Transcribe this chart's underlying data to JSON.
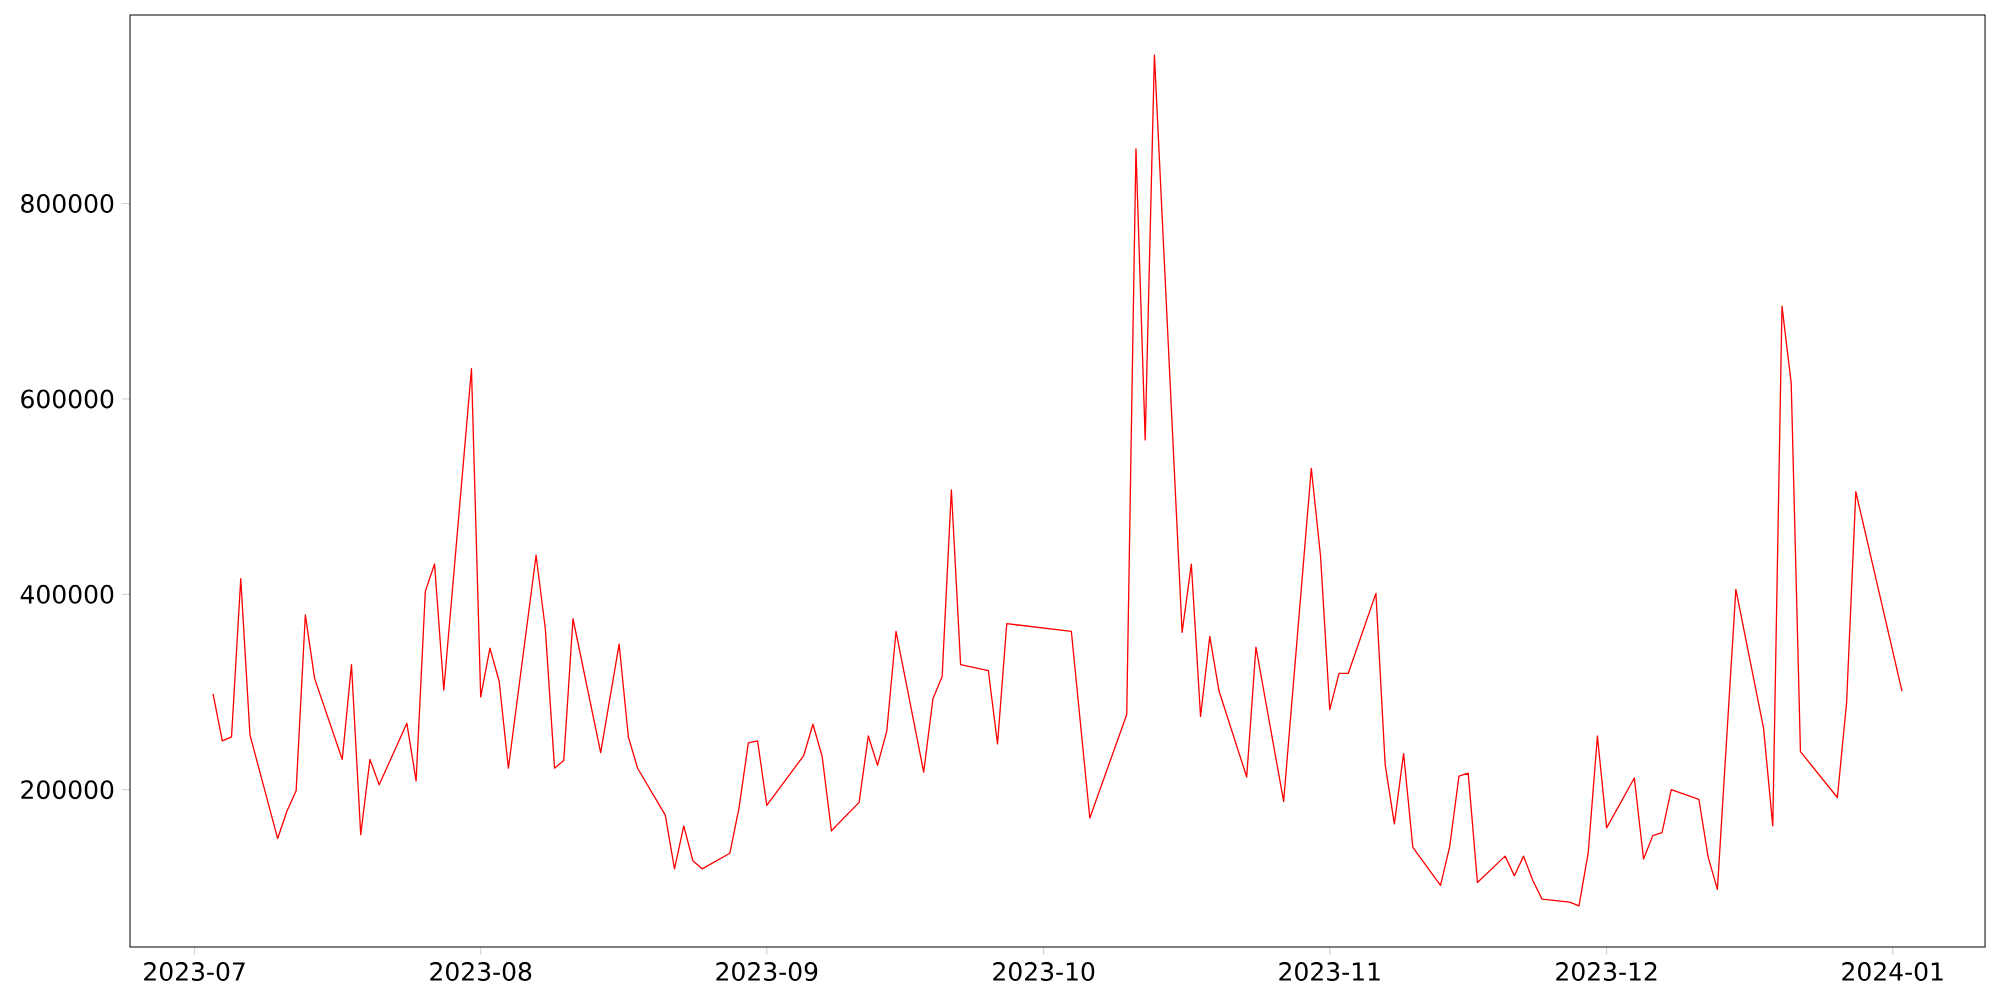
{
  "chart_data": {
    "type": "line",
    "color": "#ff0000",
    "x": [
      "2023-07-03",
      "2023-07-04",
      "2023-07-05",
      "2023-07-06",
      "2023-07-07",
      "2023-07-10",
      "2023-07-11",
      "2023-07-12",
      "2023-07-13",
      "2023-07-14",
      "2023-07-17",
      "2023-07-18",
      "2023-07-19",
      "2023-07-20",
      "2023-07-21",
      "2023-07-24",
      "2023-07-25",
      "2023-07-26",
      "2023-07-27",
      "2023-07-28",
      "2023-07-31",
      "2023-08-01",
      "2023-08-02",
      "2023-08-03",
      "2023-08-04",
      "2023-08-07",
      "2023-08-08",
      "2023-08-09",
      "2023-08-10",
      "2023-08-11",
      "2023-08-14",
      "2023-08-16",
      "2023-08-17",
      "2023-08-18",
      "2023-08-21",
      "2023-08-22",
      "2023-08-23",
      "2023-08-24",
      "2023-08-25",
      "2023-08-28",
      "2023-08-29",
      "2023-08-30",
      "2023-08-31",
      "2023-09-01",
      "2023-09-05",
      "2023-09-06",
      "2023-09-07",
      "2023-09-08",
      "2023-09-11",
      "2023-09-12",
      "2023-09-13",
      "2023-09-14",
      "2023-09-15",
      "2023-09-18",
      "2023-09-19",
      "2023-09-20",
      "2023-09-21",
      "2023-09-22",
      "2023-09-25",
      "2023-09-26",
      "2023-09-27",
      "2023-10-04",
      "2023-10-06",
      "2023-10-10",
      "2023-10-11",
      "2023-10-12",
      "2023-10-13",
      "2023-10-16",
      "2023-10-17",
      "2023-10-18",
      "2023-10-19",
      "2023-10-20",
      "2023-10-23",
      "2023-10-24",
      "2023-10-27",
      "2023-10-30",
      "2023-10-31",
      "2023-11-01",
      "2023-11-02",
      "2023-11-03",
      "2023-11-06",
      "2023-11-07",
      "2023-11-08",
      "2023-11-09",
      "2023-11-10",
      "2023-11-13",
      "2023-11-14",
      "2023-11-15",
      "2023-11-16",
      "2023-11-17",
      "2023-11-20",
      "2023-11-21",
      "2023-11-22",
      "2023-11-23",
      "2023-11-24",
      "2023-11-27",
      "2023-11-28",
      "2023-11-29",
      "2023-11-30",
      "2023-12-01",
      "2023-12-04",
      "2023-12-05",
      "2023-12-06",
      "2023-12-07",
      "2023-12-08",
      "2023-12-11",
      "2023-12-12",
      "2023-12-13",
      "2023-12-15",
      "2023-12-18",
      "2023-12-19",
      "2023-12-20",
      "2023-12-21",
      "2023-12-22",
      "2023-12-26",
      "2023-12-27",
      "2023-12-28",
      "2024-01-02"
    ],
    "values": [
      298000,
      250000,
      254000,
      416000,
      256000,
      150000,
      178000,
      199000,
      379000,
      314000,
      231000,
      328000,
      154000,
      231000,
      205000,
      268000,
      209000,
      403000,
      431000,
      302000,
      631000,
      295000,
      345000,
      311000,
      222000,
      440000,
      365000,
      222000,
      230000,
      375000,
      238000,
      349000,
      254000,
      222000,
      174000,
      119000,
      163000,
      127000,
      119000,
      135000,
      182000,
      248000,
      250000,
      184000,
      235000,
      267000,
      234000,
      158000,
      187000,
      255000,
      225000,
      260000,
      362000,
      218000,
      293000,
      316000,
      507000,
      328000,
      322000,
      247000,
      370000,
      362000,
      171000,
      277000,
      856000,
      558000,
      952000,
      361000,
      431000,
      275000,
      357000,
      301000,
      213000,
      346000,
      188000,
      529000,
      439000,
      282000,
      319000,
      319000,
      401000,
      226000,
      165000,
      237000,
      141000,
      102000,
      142000,
      214000,
      217000,
      105000,
      132000,
      112000,
      132000,
      107000,
      88000,
      85000,
      81000,
      135000,
      255000,
      161000,
      212000,
      129000,
      153000,
      156000,
      200000,
      190000,
      131000,
      98000,
      405000,
      263000,
      163000,
      695000,
      616000,
      239000,
      192000,
      289000,
      505000,
      301000
    ],
    "xlim": [
      "2023-06-24",
      "2024-01-11"
    ],
    "xticks": [
      "2023-07",
      "2023-08",
      "2023-09",
      "2023-10",
      "2023-11",
      "2023-12",
      "2024-01"
    ],
    "ylim": [
      39000,
      993000
    ],
    "yticks": [
      200000,
      400000,
      600000,
      800000
    ]
  }
}
